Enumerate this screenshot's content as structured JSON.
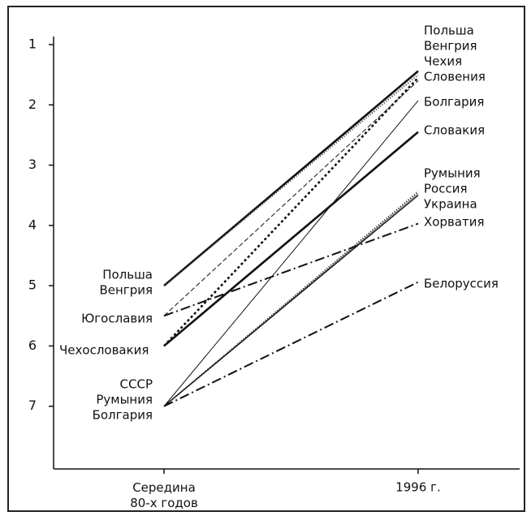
{
  "chart_data": {
    "type": "slope",
    "categories": [
      [
        "Середина",
        "80-х годов"
      ],
      "1996 г."
    ],
    "ylim": [
      0.866,
      8.04
    ],
    "y_inverted": true,
    "yticks": [
      1,
      2,
      3,
      4,
      5,
      6,
      7
    ],
    "start_labels": [
      [
        "Польша",
        "Венгрия"
      ],
      [
        "Югославия"
      ],
      [
        "Чехословакия"
      ],
      [
        "СССР",
        "Румыния",
        "Болгария"
      ]
    ],
    "series": [
      {
        "name": "Польша",
        "color": "#111",
        "line": "solid",
        "width": 2.6,
        "values": [
          5,
          1.44
        ]
      },
      {
        "name": "Венгрия",
        "color": "#444",
        "line": "dotted",
        "width": 2,
        "values": [
          5,
          1.5
        ]
      },
      {
        "name": "Чехия",
        "color": "#111",
        "line": "dotted",
        "width": 2.6,
        "values": [
          6,
          1.55
        ]
      },
      {
        "name": "Словения",
        "color": "#111",
        "line": "dashed",
        "width": 1,
        "values": [
          5.5,
          1.6
        ]
      },
      {
        "name": "Болгария",
        "color": "#111",
        "line": "solid",
        "width": 1,
        "values": [
          7,
          1.93
        ]
      },
      {
        "name": "Словакия",
        "color": "#111",
        "line": "solid",
        "width": 2.6,
        "values": [
          6,
          2.45
        ]
      },
      {
        "name": "Румыния",
        "color": "#111",
        "line": "dotted",
        "width": 1.6,
        "values": [
          7,
          3.44
        ]
      },
      {
        "name": "Россия",
        "color": "#777",
        "line": "solid",
        "width": 1,
        "values": [
          7,
          3.47
        ]
      },
      {
        "name": "Украина",
        "color": "#111",
        "line": "solid",
        "width": 1.4,
        "values": [
          7,
          3.5
        ]
      },
      {
        "name": "Хорватия",
        "color": "#111",
        "line": "dashdot",
        "width": 2,
        "values": [
          5.5,
          3.97
        ]
      },
      {
        "name": "Белоруссия",
        "color": "#111",
        "line": "dashdot",
        "width": 2,
        "values": [
          7,
          4.94
        ]
      }
    ]
  }
}
